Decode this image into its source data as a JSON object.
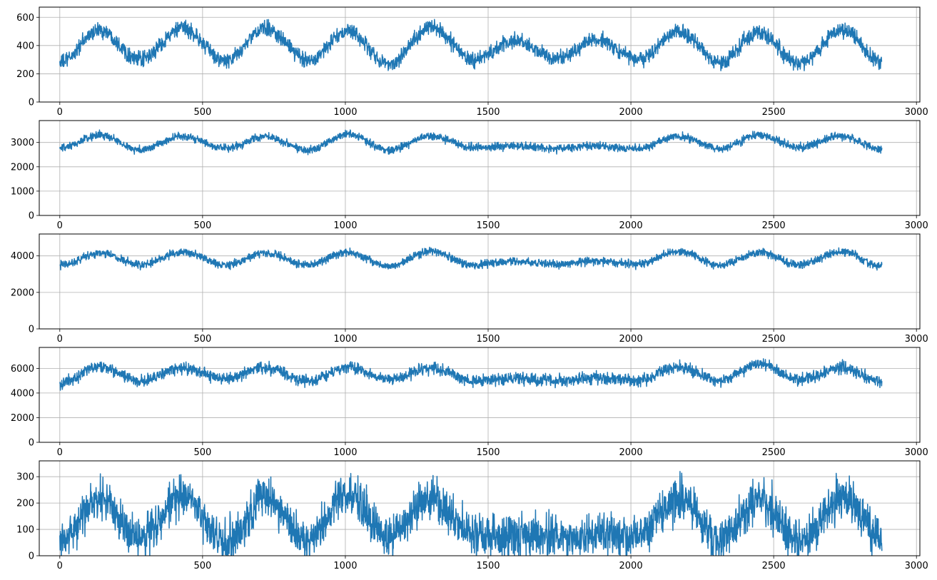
{
  "chart_data": [
    {
      "type": "line",
      "grid": true,
      "xlim": [
        -72,
        3012
      ],
      "ylim": [
        0,
        672
      ],
      "xticks": [
        0,
        500,
        1000,
        1500,
        2000,
        2500,
        3000
      ],
      "xtick_labels": [
        "0",
        "500",
        "1000",
        "1500",
        "2000",
        "2500",
        "3000"
      ],
      "yticks": [
        0,
        200,
        400,
        600
      ],
      "ytick_labels": [
        "0",
        "200",
        "400",
        "600"
      ],
      "n_points": 2880,
      "color": "#1f77b4",
      "seasonal_knots": {
        "x": [
          0,
          140,
          280,
          430,
          580,
          720,
          870,
          1010,
          1150,
          1300,
          1450,
          1590,
          1740,
          1880,
          2020,
          2170,
          2310,
          2450,
          2590,
          2740,
          2880
        ],
        "y": [
          280,
          510,
          300,
          520,
          290,
          520,
          300,
          500,
          270,
          530,
          300,
          430,
          310,
          440,
          300,
          500,
          280,
          500,
          270,
          510,
          280
        ]
      },
      "noise_amplitude": 30
    },
    {
      "type": "line",
      "grid": true,
      "xlim": [
        -72,
        3012
      ],
      "ylim": [
        0,
        3900
      ],
      "xticks": [
        0,
        500,
        1000,
        1500,
        2000,
        2500,
        3000
      ],
      "xtick_labels": [
        "0",
        "500",
        "1000",
        "1500",
        "2000",
        "2500",
        "3000"
      ],
      "yticks": [
        0,
        1000,
        2000,
        3000
      ],
      "ytick_labels": [
        "0",
        "1000",
        "2000",
        "3000"
      ],
      "n_points": 2880,
      "color": "#1f77b4",
      "seasonal_knots": {
        "x": [
          0,
          140,
          280,
          430,
          580,
          720,
          870,
          1010,
          1150,
          1300,
          1450,
          1590,
          1740,
          1880,
          2020,
          2170,
          2310,
          2450,
          2590,
          2740,
          2880
        ],
        "y": [
          2750,
          3300,
          2700,
          3250,
          2750,
          3250,
          2700,
          3350,
          2700,
          3250,
          2800,
          2850,
          2750,
          2850,
          2750,
          3250,
          2750,
          3300,
          2800,
          3250,
          2700
        ]
      },
      "noise_amplitude": 90
    },
    {
      "type": "line",
      "grid": true,
      "xlim": [
        -72,
        3012
      ],
      "ylim": [
        0,
        5200
      ],
      "xticks": [
        0,
        500,
        1000,
        1500,
        2000,
        2500,
        3000
      ],
      "xtick_labels": [
        "0",
        "500",
        "1000",
        "1500",
        "2000",
        "2500",
        "3000"
      ],
      "yticks": [
        0,
        2000,
        4000
      ],
      "ytick_labels": [
        "0",
        "2000",
        "4000"
      ],
      "n_points": 2880,
      "color": "#1f77b4",
      "seasonal_knots": {
        "x": [
          0,
          140,
          280,
          430,
          580,
          720,
          870,
          1010,
          1150,
          1300,
          1450,
          1590,
          1740,
          1880,
          2020,
          2170,
          2310,
          2450,
          2590,
          2740,
          2880
        ],
        "y": [
          3500,
          4150,
          3500,
          4200,
          3500,
          4150,
          3500,
          4200,
          3450,
          4250,
          3500,
          3700,
          3550,
          3700,
          3550,
          4250,
          3500,
          4200,
          3500,
          4250,
          3400
        ]
      },
      "noise_amplitude": 120
    },
    {
      "type": "line",
      "grid": true,
      "xlim": [
        -72,
        3012
      ],
      "ylim": [
        0,
        7700
      ],
      "xticks": [
        0,
        500,
        1000,
        1500,
        2000,
        2500,
        3000
      ],
      "xtick_labels": [
        "0",
        "500",
        "1000",
        "1500",
        "2000",
        "2500",
        "3000"
      ],
      "yticks": [
        0,
        2000,
        4000,
        6000
      ],
      "ytick_labels": [
        "0",
        "2000",
        "4000",
        "6000"
      ],
      "n_points": 2880,
      "color": "#1f77b4",
      "seasonal_knots": {
        "x": [
          0,
          140,
          280,
          430,
          580,
          720,
          870,
          1010,
          1150,
          1300,
          1450,
          1590,
          1740,
          1880,
          2020,
          2170,
          2310,
          2450,
          2590,
          2740,
          2880
        ],
        "y": [
          4800,
          6100,
          5000,
          6000,
          5200,
          6000,
          5000,
          6100,
          5100,
          6000,
          5000,
          5200,
          5000,
          5200,
          5000,
          6100,
          5000,
          6300,
          5100,
          6100,
          4800
        ]
      },
      "noise_amplitude": 260
    },
    {
      "type": "line",
      "grid": true,
      "xlim": [
        -72,
        3012
      ],
      "ylim": [
        0,
        360
      ],
      "xticks": [
        0,
        500,
        1000,
        1500,
        2000,
        2500,
        3000
      ],
      "xtick_labels": [
        "0",
        "500",
        "1000",
        "1500",
        "2000",
        "2500",
        "3000"
      ],
      "yticks": [
        0,
        100,
        200,
        300
      ],
      "ytick_labels": [
        "0",
        "100",
        "200",
        "300"
      ],
      "n_points": 2880,
      "color": "#1f77b4",
      "seasonal_knots": {
        "x": [
          0,
          140,
          280,
          430,
          580,
          720,
          870,
          1010,
          1150,
          1300,
          1450,
          1590,
          1740,
          1880,
          2020,
          2170,
          2310,
          2450,
          2590,
          2740,
          2880
        ],
        "y": [
          60,
          210,
          70,
          220,
          50,
          220,
          60,
          240,
          70,
          220,
          80,
          80,
          70,
          80,
          70,
          220,
          60,
          210,
          60,
          220,
          70
        ]
      },
      "noise_amplitude": 45
    }
  ]
}
